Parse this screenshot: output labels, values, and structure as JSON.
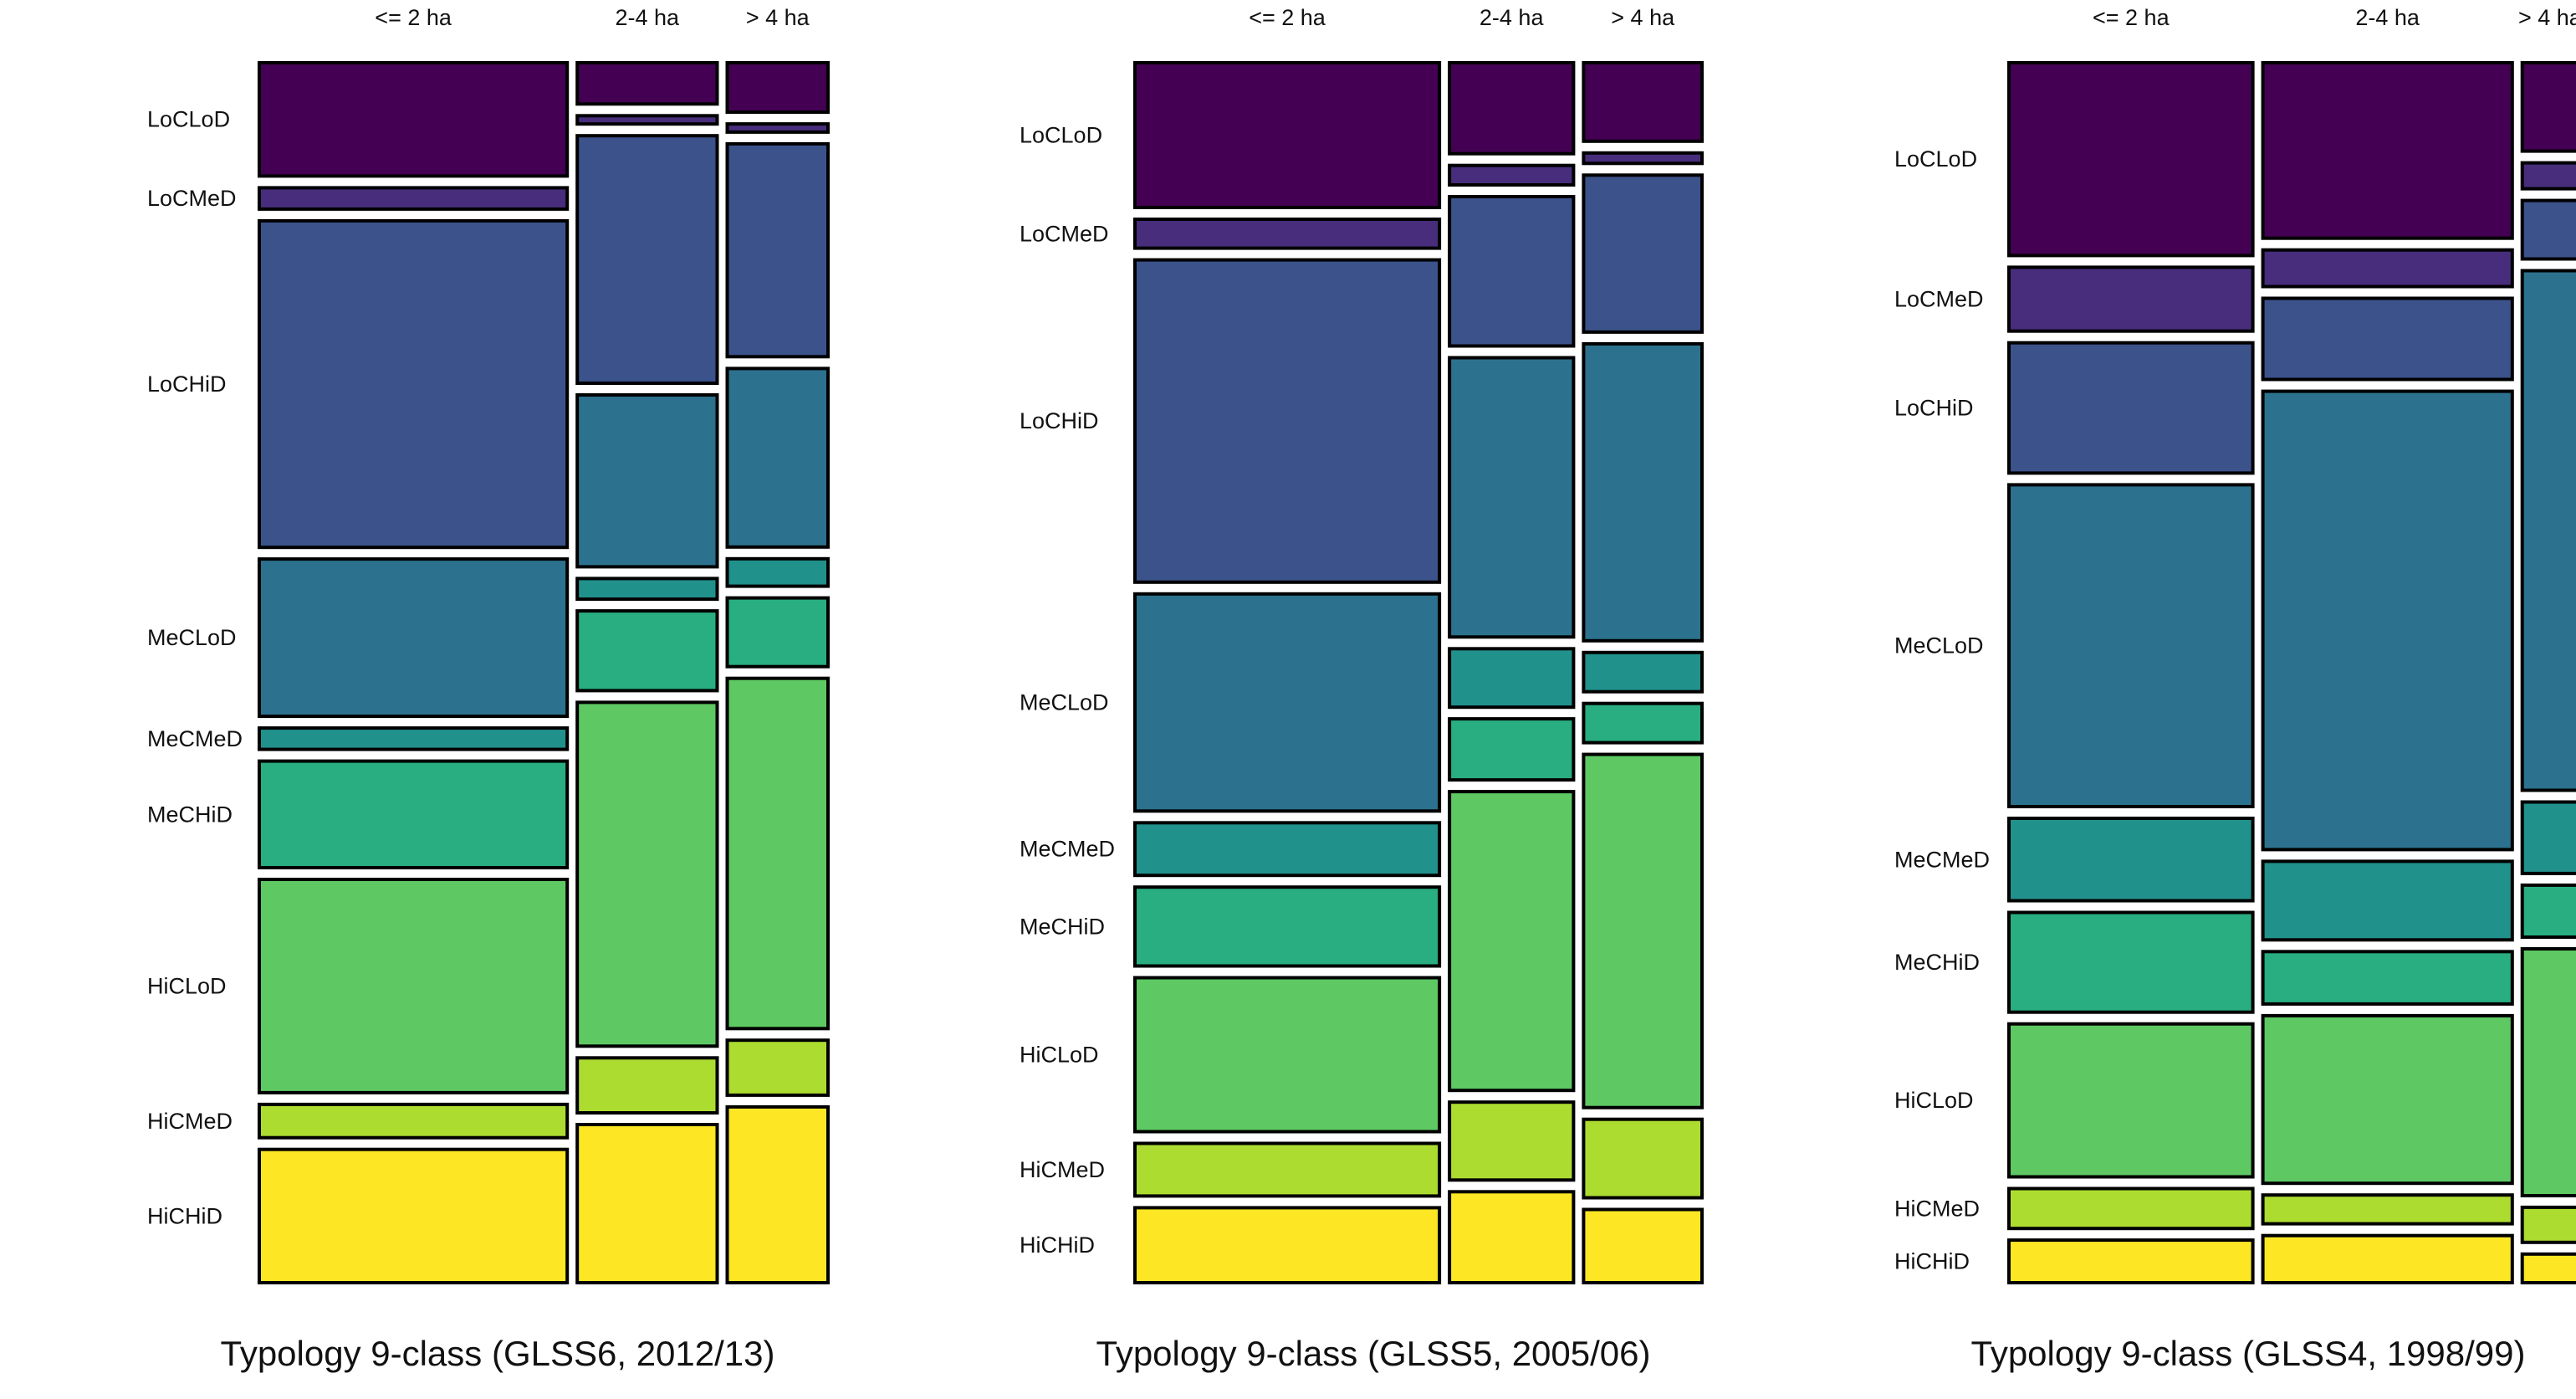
{
  "chart_data": [
    {
      "type": "mosaic",
      "title": "Typology 9-class (GLSS6, 2012/13)",
      "col_categories": [
        "<= 2 ha",
        "2-4 ha",
        "> 4 ha"
      ],
      "row_categories": [
        "LoCLoD",
        "LoCMeD",
        "LoCHiD",
        "MeCLoD",
        "MeCMeD",
        "MeCHiD",
        "HiCLoD",
        "HiCMeD",
        "HiCHiD"
      ],
      "col_proportions": [
        0.55,
        0.25,
        0.18
      ],
      "row_proportions": [
        [
          0.085,
          0.016,
          0.245,
          0.118,
          0.016,
          0.08,
          0.16,
          0.025,
          0.1
        ],
        [
          0.03,
          0.006,
          0.18,
          0.125,
          0.015,
          0.058,
          0.25,
          0.04,
          0.115
        ],
        [
          0.036,
          0.006,
          0.155,
          0.13,
          0.02,
          0.05,
          0.255,
          0.04,
          0.128
        ]
      ],
      "palette": [
        "#440154",
        "#482878",
        "#3e4a89",
        "#31688e",
        "#26828e",
        "#1f9e89",
        "#35b779",
        "#6ece58",
        "#b5de2b",
        "#fde725"
      ]
    },
    {
      "type": "mosaic",
      "title": "Typology 9-class (GLSS5, 2005/06)",
      "col_categories": [
        "<= 2 ha",
        "2-4 ha",
        "> 4 ha"
      ],
      "row_categories": [
        "LoCLoD",
        "LoCMeD",
        "LoCHiD",
        "MeCLoD",
        "MeCMeD",
        "MeCHiD",
        "HiCLoD",
        "HiCMeD",
        "HiCHiD"
      ],
      "col_proportions": [
        0.54,
        0.22,
        0.21
      ],
      "row_proportions": [
        [
          0.11,
          0.022,
          0.245,
          0.165,
          0.04,
          0.06,
          0.117,
          0.04,
          0.057
        ],
        [
          0.07,
          0.015,
          0.115,
          0.215,
          0.045,
          0.047,
          0.23,
          0.06,
          0.07
        ],
        [
          0.06,
          0.008,
          0.12,
          0.227,
          0.03,
          0.03,
          0.27,
          0.06,
          0.056
        ]
      ]
    },
    {
      "type": "mosaic",
      "title": "Typology 9-class (GLSS4, 1998/99)",
      "col_categories": [
        "<= 2 ha",
        "2-4 ha",
        "> 4 ha"
      ],
      "row_categories": [
        "LoCLoD",
        "LoCMeD",
        "LoCHiD",
        "MeCLoD",
        "MeCMeD",
        "MeCHiD",
        "HiCLoD",
        "HiCMeD",
        "HiCHiD"
      ],
      "col_proportions": [
        0.44,
        0.45,
        0.1
      ],
      "row_proportions": [
        [
          0.145,
          0.048,
          0.098,
          0.242,
          0.062,
          0.075,
          0.115,
          0.03,
          0.032
        ],
        [
          0.134,
          0.028,
          0.062,
          0.35,
          0.06,
          0.04,
          0.128,
          0.022,
          0.036
        ],
        [
          0.068,
          0.02,
          0.045,
          0.4,
          0.055,
          0.04,
          0.19,
          0.027,
          0.022
        ]
      ]
    }
  ],
  "box_colors": {
    "LoCLoD": "#440154",
    "LoCMeD": "#472d7b",
    "LoCHiD": "#3b528b",
    "MeCLoD": "#2c728e",
    "MeCMeD": "#21918c",
    "MeCHiD": "#28ae80",
    "HiCLoD": "#5ec962",
    "HiCMeD": "#addc30",
    "HiCHiD": "#fde725"
  }
}
